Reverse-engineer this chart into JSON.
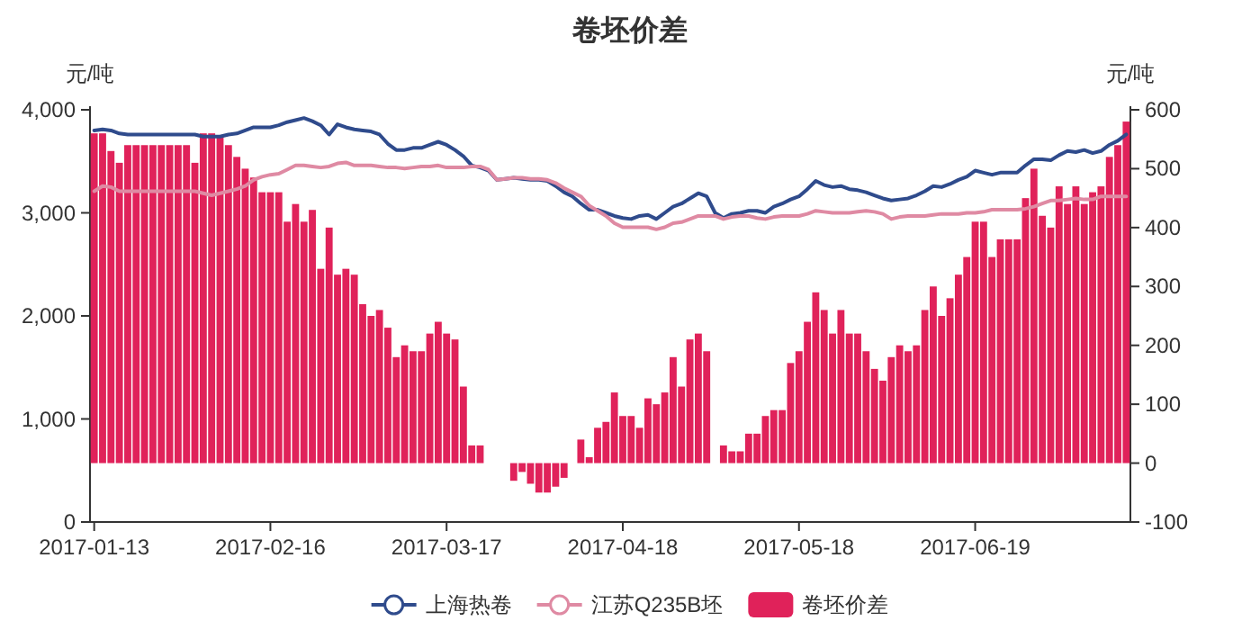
{
  "chart_data": {
    "type": "bar",
    "title": "卷坯价差",
    "ylabel": "元/吨",
    "y2label": "元/吨",
    "categories": [
      "2017-01-13",
      null,
      null,
      null,
      null,
      null,
      null,
      null,
      null,
      null,
      null,
      null,
      null,
      null,
      null,
      null,
      null,
      null,
      null,
      null,
      null,
      "2017-02-16",
      null,
      null,
      null,
      null,
      null,
      null,
      null,
      null,
      null,
      null,
      null,
      null,
      null,
      null,
      null,
      null,
      null,
      null,
      null,
      null,
      "2017-03-17",
      null,
      null,
      null,
      null,
      null,
      null,
      null,
      null,
      null,
      null,
      null,
      null,
      null,
      null,
      null,
      null,
      null,
      null,
      null,
      null,
      "2017-04-18",
      null,
      null,
      null,
      null,
      null,
      null,
      null,
      null,
      null,
      null,
      null,
      null,
      null,
      null,
      null,
      null,
      null,
      null,
      null,
      null,
      "2017-05-18",
      null,
      null,
      null,
      null,
      null,
      null,
      null,
      null,
      null,
      null,
      null,
      null,
      null,
      null,
      null,
      null,
      null,
      null,
      null,
      null,
      "2017-06-19",
      null,
      null,
      null,
      null,
      null,
      null,
      null,
      null,
      null,
      null,
      null,
      null,
      null,
      null,
      null,
      null,
      null,
      null
    ],
    "series": [
      {
        "name": "上海热卷",
        "type": "line",
        "color": "#2f4b8c",
        "values": [
          3800,
          3810,
          3800,
          3770,
          3760,
          3760,
          3760,
          3760,
          3760,
          3760,
          3760,
          3760,
          3760,
          3740,
          3740,
          3740,
          3760,
          3770,
          3800,
          3830,
          3830,
          3830,
          3850,
          3880,
          3900,
          3920,
          3890,
          3850,
          3760,
          3860,
          3830,
          3810,
          3800,
          3790,
          3760,
          3670,
          3610,
          3610,
          3630,
          3630,
          3660,
          3690,
          3660,
          3610,
          3550,
          3460,
          3440,
          3410,
          3320,
          3330,
          3340,
          3330,
          3320,
          3320,
          3310,
          3260,
          3200,
          3160,
          3090,
          3030,
          3030,
          3000,
          2970,
          2950,
          2940,
          2970,
          2980,
          2940,
          3000,
          3060,
          3090,
          3140,
          3190,
          3160,
          3000,
          2950,
          2990,
          3000,
          3020,
          3020,
          3000,
          3060,
          3090,
          3130,
          3160,
          3230,
          3310,
          3270,
          3250,
          3260,
          3230,
          3220,
          3200,
          3170,
          3140,
          3120,
          3130,
          3140,
          3170,
          3210,
          3260,
          3250,
          3280,
          3320,
          3350,
          3410,
          3390,
          3370,
          3390,
          3390,
          3390,
          3460,
          3520,
          3520,
          3510,
          3560,
          3600,
          3590,
          3610,
          3580,
          3600,
          3660,
          3700,
          3760
        ]
      },
      {
        "name": "江苏Q235B坯",
        "type": "line",
        "color": "#df8aa3",
        "values": [
          3210,
          3260,
          3250,
          3210,
          3210,
          3210,
          3210,
          3210,
          3210,
          3210,
          3210,
          3210,
          3210,
          3190,
          3170,
          3190,
          3210,
          3230,
          3260,
          3320,
          3350,
          3370,
          3380,
          3420,
          3460,
          3460,
          3450,
          3440,
          3450,
          3480,
          3490,
          3460,
          3460,
          3460,
          3450,
          3440,
          3440,
          3430,
          3440,
          3450,
          3450,
          3460,
          3440,
          3440,
          3440,
          3450,
          3450,
          3420,
          3320,
          3330,
          3340,
          3340,
          3330,
          3330,
          3320,
          3290,
          3240,
          3200,
          3160,
          3070,
          3020,
          2970,
          2900,
          2860,
          2860,
          2860,
          2860,
          2840,
          2860,
          2900,
          2910,
          2940,
          2970,
          2970,
          2970,
          2940,
          2960,
          2970,
          2970,
          2950,
          2940,
          2960,
          2970,
          2970,
          2970,
          2990,
          3020,
          3010,
          3000,
          3000,
          3000,
          3010,
          3020,
          3010,
          2990,
          2940,
          2960,
          2970,
          2970,
          2970,
          2980,
          2990,
          2990,
          2990,
          3000,
          3000,
          3010,
          3030,
          3030,
          3030,
          3030,
          3040,
          3060,
          3090,
          3120,
          3120,
          3130,
          3140,
          3130,
          3130,
          3160,
          3160,
          3160,
          3160
        ]
      },
      {
        "name": "卷坯价差",
        "axis": "y2",
        "color": "#e0225a",
        "values": [
          560,
          560,
          530,
          510,
          540,
          540,
          540,
          540,
          540,
          540,
          540,
          540,
          510,
          560,
          560,
          555,
          540,
          520,
          500,
          485,
          460,
          460,
          460,
          410,
          440,
          410,
          430,
          330,
          400,
          320,
          330,
          320,
          270,
          250,
          260,
          230,
          180,
          200,
          190,
          190,
          220,
          240,
          220,
          210,
          130,
          30,
          30,
          null,
          null,
          null,
          -30,
          -15,
          -35,
          -50,
          -50,
          -40,
          -25,
          null,
          40,
          10,
          60,
          70,
          120,
          80,
          80,
          60,
          110,
          100,
          120,
          180,
          130,
          210,
          220,
          190,
          null,
          30,
          20,
          20,
          50,
          50,
          80,
          90,
          90,
          170,
          190,
          240,
          290,
          260,
          220,
          260,
          220,
          220,
          190,
          160,
          140,
          180,
          200,
          190,
          200,
          260,
          300,
          250,
          280,
          320,
          350,
          410,
          410,
          350,
          380,
          380,
          380,
          450,
          500,
          420,
          400,
          470,
          440,
          470,
          440,
          460,
          470,
          520,
          540,
          580
        ]
      }
    ],
    "ylim": [
      0,
      4000
    ],
    "yticks": [
      0,
      {
        "value": 1000,
        "label": "1,000"
      },
      {
        "value": 2000,
        "label": "2,000"
      },
      {
        "value": 3000,
        "label": "3,000"
      },
      {
        "value": 4000,
        "label": "4,000"
      }
    ],
    "y2lim": [
      -100,
      600
    ],
    "y2ticks": [
      -100,
      0,
      100,
      200,
      300,
      400,
      500,
      600
    ],
    "legend": "bottom",
    "grid": false
  }
}
